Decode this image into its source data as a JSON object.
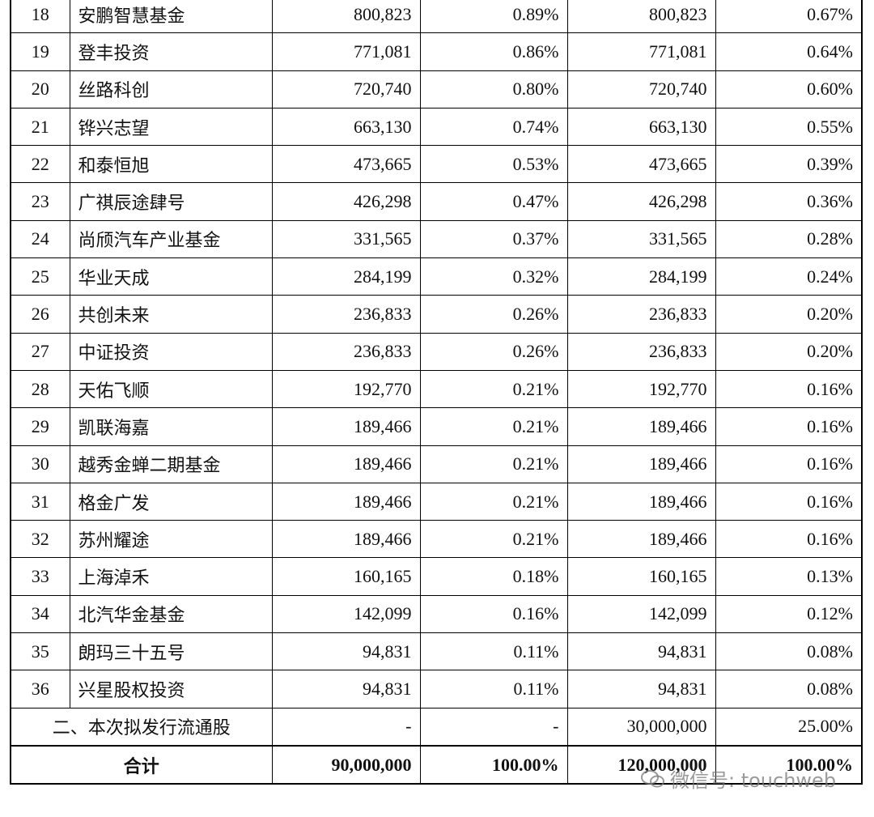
{
  "table": {
    "rows": [
      [
        "18",
        "安鹏智慧基金",
        "800,823",
        "0.89%",
        "800,823",
        "0.67%"
      ],
      [
        "19",
        "登丰投资",
        "771,081",
        "0.86%",
        "771,081",
        "0.64%"
      ],
      [
        "20",
        "丝路科创",
        "720,740",
        "0.80%",
        "720,740",
        "0.60%"
      ],
      [
        "21",
        "铧兴志望",
        "663,130",
        "0.74%",
        "663,130",
        "0.55%"
      ],
      [
        "22",
        "和泰恒旭",
        "473,665",
        "0.53%",
        "473,665",
        "0.39%"
      ],
      [
        "23",
        "广祺辰途肆号",
        "426,298",
        "0.47%",
        "426,298",
        "0.36%"
      ],
      [
        "24",
        "尚颀汽车产业基金",
        "331,565",
        "0.37%",
        "331,565",
        "0.28%"
      ],
      [
        "25",
        "华业天成",
        "284,199",
        "0.32%",
        "284,199",
        "0.24%"
      ],
      [
        "26",
        "共创未来",
        "236,833",
        "0.26%",
        "236,833",
        "0.20%"
      ],
      [
        "27",
        "中证投资",
        "236,833",
        "0.26%",
        "236,833",
        "0.20%"
      ],
      [
        "28",
        "天佑飞顺",
        "192,770",
        "0.21%",
        "192,770",
        "0.16%"
      ],
      [
        "29",
        "凯联海嘉",
        "189,466",
        "0.21%",
        "189,466",
        "0.16%"
      ],
      [
        "30",
        "越秀金蝉二期基金",
        "189,466",
        "0.21%",
        "189,466",
        "0.16%"
      ],
      [
        "31",
        "格金广发",
        "189,466",
        "0.21%",
        "189,466",
        "0.16%"
      ],
      [
        "32",
        "苏州耀途",
        "189,466",
        "0.21%",
        "189,466",
        "0.16%"
      ],
      [
        "33",
        "上海淖禾",
        "160,165",
        "0.18%",
        "160,165",
        "0.13%"
      ],
      [
        "34",
        "北汽华金基金",
        "142,099",
        "0.16%",
        "142,099",
        "0.12%"
      ],
      [
        "35",
        "朗玛三十五号",
        "94,831",
        "0.11%",
        "94,831",
        "0.08%"
      ],
      [
        "36",
        "兴星股权投资",
        "94,831",
        "0.11%",
        "94,831",
        "0.08%"
      ],
      [
        "二、本次拟发行流通股",
        "-",
        "-",
        "30,000,000",
        "25.00%"
      ],
      [
        "合计",
        "90,000,000",
        "100.00%",
        "120,000,000",
        "100.00%"
      ]
    ]
  },
  "watermark": "微信号: touchweb"
}
